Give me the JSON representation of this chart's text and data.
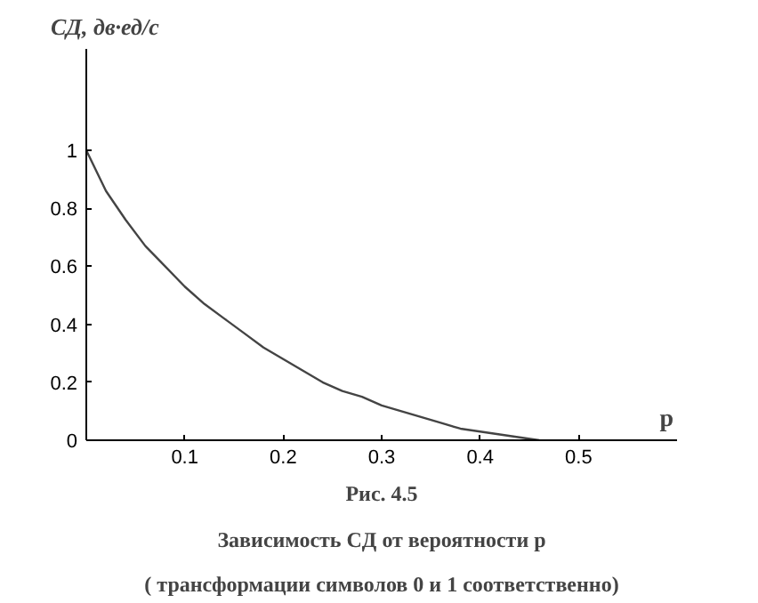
{
  "chart_data": {
    "type": "line",
    "title": "Рис. 4.5",
    "subtitle": "Зависимость CД от вероятности p",
    "annotations": [
      "( трансформации символов 0 и 1 соответственно)"
    ],
    "xlabel": "p",
    "ylabel": "CД, дв·ед/с",
    "x": [
      0,
      0.02,
      0.04,
      0.06,
      0.08,
      0.1,
      0.12,
      0.14,
      0.16,
      0.18,
      0.2,
      0.22,
      0.24,
      0.26,
      0.28,
      0.3,
      0.32,
      0.34,
      0.36,
      0.38,
      0.4,
      0.42,
      0.44,
      0.46
    ],
    "series": [
      {
        "color": "#444444",
        "values": [
          1.0,
          0.86,
          0.76,
          0.67,
          0.6,
          0.53,
          0.47,
          0.42,
          0.37,
          0.32,
          0.28,
          0.24,
          0.2,
          0.17,
          0.15,
          0.12,
          0.1,
          0.08,
          0.06,
          0.04,
          0.03,
          0.02,
          0.01,
          0.0
        ]
      }
    ],
    "xlim": [
      0,
      0.6
    ],
    "ylim": [
      0,
      1.35
    ],
    "xticks": [
      0.1,
      0.2,
      0.3,
      0.4,
      0.5
    ],
    "yticks": [
      0,
      0.2,
      0.4,
      0.6,
      0.8,
      1
    ],
    "grid": false,
    "marker": "none",
    "line_style": "solid"
  }
}
